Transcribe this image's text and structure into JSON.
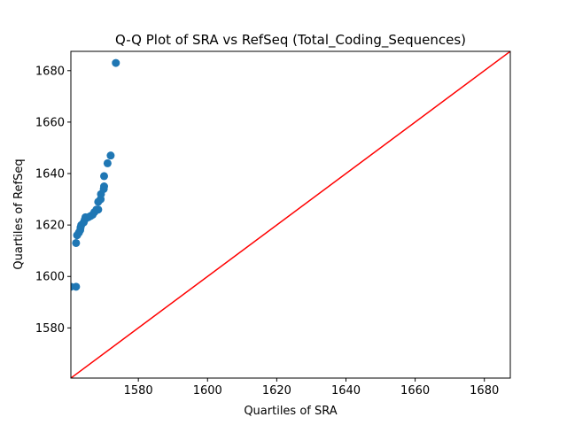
{
  "chart_data": {
    "type": "scatter",
    "title": "Q-Q Plot of SRA vs RefSeq (Total_Coding_Sequences)",
    "xlabel": "Quartiles of SRA",
    "ylabel": "Quartiles of RefSeq",
    "xlim": [
      1560.5,
      1687.5
    ],
    "ylim": [
      1560.5,
      1687.5
    ],
    "xticks": [
      1580,
      1600,
      1620,
      1640,
      1660,
      1680
    ],
    "yticks": [
      1580,
      1600,
      1620,
      1640,
      1660,
      1680
    ],
    "grid": false,
    "colors": {
      "points": "#1f77b4",
      "reference_line": "#ff0000"
    },
    "reference_line": {
      "from": [
        1560.5,
        1560.5
      ],
      "to": [
        1687.5,
        1687.5
      ]
    },
    "points": [
      {
        "x": 1560.5,
        "y": 1596
      },
      {
        "x": 1562,
        "y": 1596
      },
      {
        "x": 1562,
        "y": 1613
      },
      {
        "x": 1562.3,
        "y": 1616
      },
      {
        "x": 1562.8,
        "y": 1617
      },
      {
        "x": 1563.2,
        "y": 1618
      },
      {
        "x": 1563.3,
        "y": 1619
      },
      {
        "x": 1563.5,
        "y": 1620
      },
      {
        "x": 1564.2,
        "y": 1621
      },
      {
        "x": 1564.5,
        "y": 1622
      },
      {
        "x": 1564.7,
        "y": 1623
      },
      {
        "x": 1565.5,
        "y": 1623
      },
      {
        "x": 1566.2,
        "y": 1623.5
      },
      {
        "x": 1566.8,
        "y": 1624
      },
      {
        "x": 1567.3,
        "y": 1625
      },
      {
        "x": 1567.9,
        "y": 1626
      },
      {
        "x": 1568.4,
        "y": 1626
      },
      {
        "x": 1568.4,
        "y": 1629
      },
      {
        "x": 1569.1,
        "y": 1630
      },
      {
        "x": 1569.2,
        "y": 1632
      },
      {
        "x": 1570,
        "y": 1634
      },
      {
        "x": 1570.1,
        "y": 1635
      },
      {
        "x": 1570.1,
        "y": 1639
      },
      {
        "x": 1571.1,
        "y": 1644
      },
      {
        "x": 1572,
        "y": 1647
      },
      {
        "x": 1573.5,
        "y": 1683
      }
    ]
  }
}
